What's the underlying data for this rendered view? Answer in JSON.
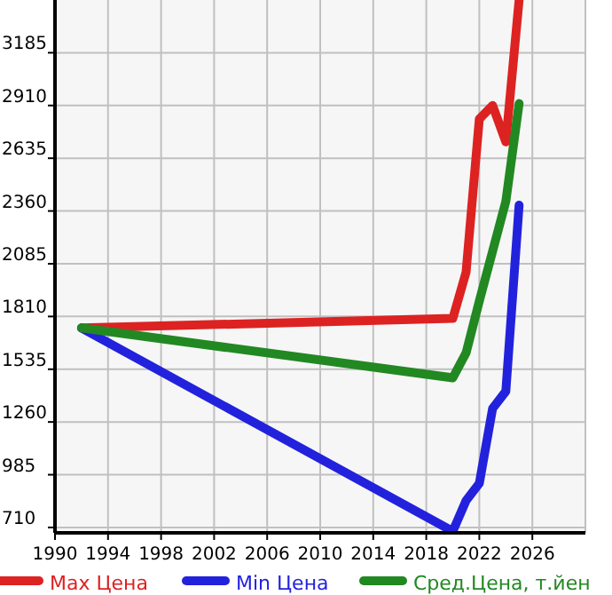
{
  "chart_data": {
    "type": "line",
    "x": [
      1992,
      2020,
      2021,
      2022,
      2023,
      2024,
      2025
    ],
    "series": [
      {
        "name": "Max Цена",
        "color": "#dd2222",
        "values": [
          1750,
          1800,
          2040,
          2840,
          2910,
          2720,
          3460
        ]
      },
      {
        "name": "Min Цена",
        "color": "#2222dd",
        "values": [
          1750,
          690,
          850,
          940,
          1330,
          1420,
          2390
        ]
      },
      {
        "name": "Сред.Цена, т.йен",
        "color": "#228822",
        "values": [
          1750,
          1490,
          1620,
          1890,
          2150,
          2410,
          2920
        ]
      }
    ],
    "xlim": [
      1990,
      2030
    ],
    "xticks": [
      1990,
      1994,
      1998,
      2002,
      2006,
      2010,
      2014,
      2018,
      2022,
      2026
    ],
    "ylim": [
      682,
      3460
    ],
    "yticks": [
      710,
      985,
      1260,
      1535,
      1810,
      2085,
      2360,
      2635,
      2910,
      3185
    ],
    "grid": true,
    "legend": "bottom",
    "marker": "none",
    "line_style": "solid"
  }
}
